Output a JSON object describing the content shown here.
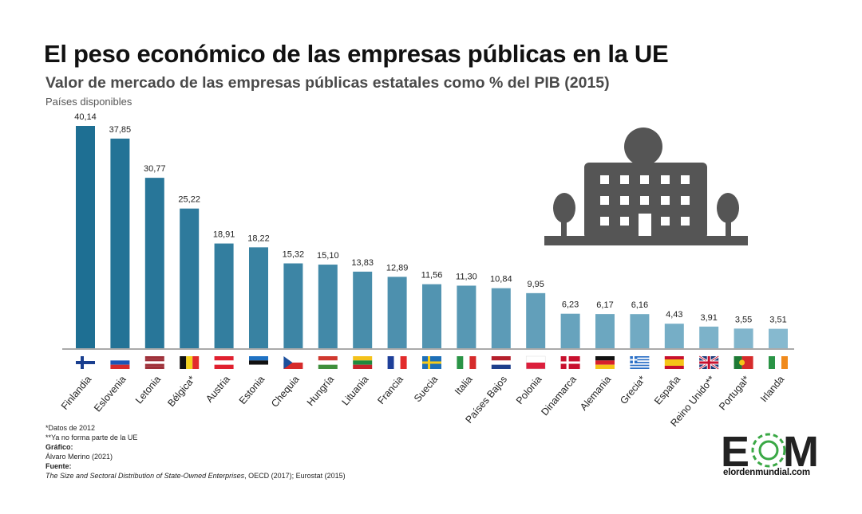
{
  "header": {
    "title": "El peso económico de las empresas públicas en la UE",
    "subtitle": "Valor de mercado de las empresas públicas estatales como % del PIB (2015)",
    "note": "Países disponibles"
  },
  "chart_data": {
    "type": "bar",
    "title": "El peso económico de las empresas públicas en la UE",
    "subtitle": "Valor de mercado de las empresas públicas estatales como % del PIB (2015)",
    "categories": [
      "Finlandia",
      "Eslovenia",
      "Letonia",
      "Bélgica*",
      "Austria",
      "Estonia",
      "Chequia",
      "Hungría",
      "Lituania",
      "Francia",
      "Suecia",
      "Italia",
      "Países Bajos",
      "Polonia",
      "Dinamarca",
      "Alemania",
      "Grecia*",
      "España",
      "Reino Unido**",
      "Portugal*",
      "Irlanda"
    ],
    "values": [
      40.14,
      37.85,
      30.77,
      25.22,
      18.91,
      18.22,
      15.32,
      15.1,
      13.83,
      12.89,
      11.56,
      11.3,
      10.84,
      9.95,
      6.23,
      6.17,
      6.16,
      4.43,
      3.91,
      3.55,
      3.51
    ],
    "data_labels": [
      "40,14",
      "37,85",
      "30,77",
      "25,22",
      "18,91",
      "18,22",
      "15,32",
      "15,10",
      "13,83",
      "12,89",
      "11,56",
      "11,30",
      "10,84",
      "9,95",
      "6,23",
      "6,17",
      "6,16",
      "4,43",
      "3,91",
      "3,55",
      "3,51"
    ],
    "flags": [
      "finland-flag-icon",
      "slovenia-flag-icon",
      "latvia-flag-icon",
      "belgium-flag-icon",
      "austria-flag-icon",
      "estonia-flag-icon",
      "czechia-flag-icon",
      "hungary-flag-icon",
      "lithuania-flag-icon",
      "france-flag-icon",
      "sweden-flag-icon",
      "italy-flag-icon",
      "netherlands-flag-icon",
      "poland-flag-icon",
      "denmark-flag-icon",
      "germany-flag-icon",
      "greece-flag-icon",
      "spain-flag-icon",
      "united-kingdom-flag-icon",
      "portugal-flag-icon",
      "ireland-flag-icon"
    ],
    "ylim": [
      0,
      42
    ],
    "grid": false,
    "colors": {
      "dark": "#1e6f93",
      "light": "#86b9cf"
    }
  },
  "footer": {
    "note1": "*Datos de 2012",
    "note2": "**Ya no forma parte de la UE",
    "grafico_label": "Gráfico:",
    "grafico_author": "Álvaro Merino (2021)",
    "fuente_label": "Fuente:",
    "fuente_italic": "The Size and Sectoral Distribution of State-Owned Enterprises",
    "fuente_rest": ", OECD (2017); Eurostat (2015)"
  },
  "logo": {
    "letters": [
      "E",
      "O",
      "M"
    ],
    "url": "elordenmundial.com",
    "accent": "#3aa845"
  },
  "icon": {
    "name": "public-building-icon",
    "color": "#555555"
  }
}
